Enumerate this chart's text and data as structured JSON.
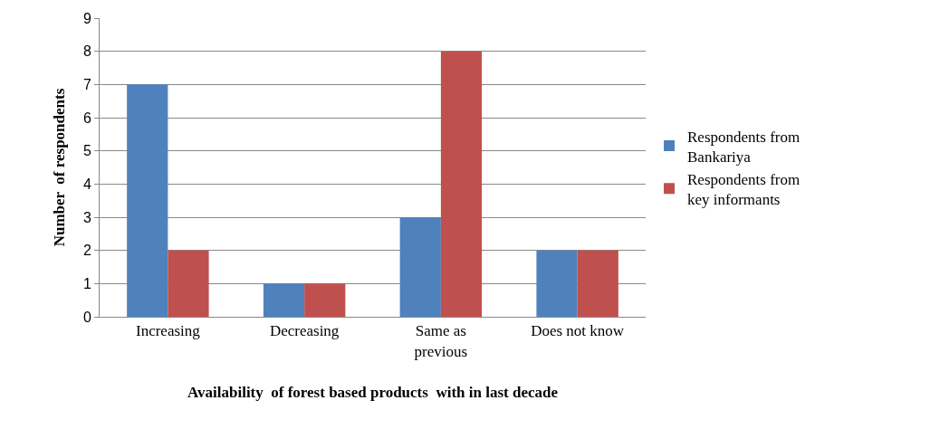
{
  "chart_data": {
    "type": "bar",
    "xlabel": "Availability  of forest based products  with in last decade",
    "ylabel": "Number  of respondents",
    "categories": [
      "Increasing",
      "Decreasing",
      "Same as previous",
      "Does not know"
    ],
    "series": [
      {
        "name": "Respondents from Bankariya",
        "color": "#4f81bd",
        "values": [
          7,
          1,
          3,
          2
        ]
      },
      {
        "name": "Respondents from key informants",
        "color": "#c0504d",
        "values": [
          2,
          1,
          8,
          2
        ]
      }
    ],
    "ylim": [
      0,
      9
    ],
    "yticks": [
      0,
      1,
      2,
      3,
      4,
      5,
      6,
      7,
      8,
      9
    ],
    "grid": "y",
    "legend": "right"
  }
}
